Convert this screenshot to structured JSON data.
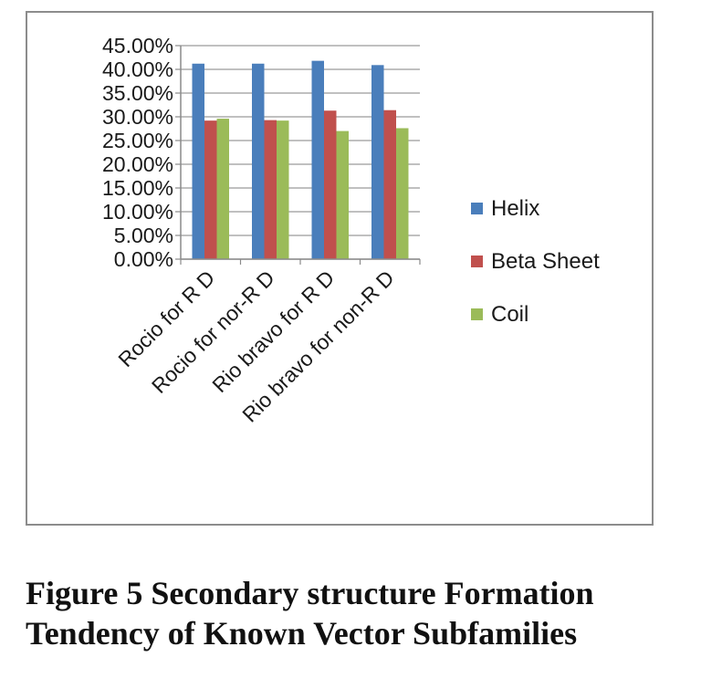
{
  "caption": {
    "line1": "Figure 5 Secondary structure Formation",
    "line2": "Tendency of Known Vector Subfamilies"
  },
  "chart_data": {
    "type": "bar",
    "categories": [
      "Rocio for R D",
      "Rocio for nor-R D",
      "Rio bravo for R D",
      "Rio bravo for non-R D"
    ],
    "series": [
      {
        "name": "Helix",
        "color": "#4a7ebb",
        "values": [
          41.2,
          41.2,
          41.8,
          40.9
        ]
      },
      {
        "name": "Beta Sheet",
        "color": "#c0504d",
        "values": [
          29.2,
          29.3,
          31.3,
          31.4
        ]
      },
      {
        "name": "Coil",
        "color": "#9bbb59",
        "values": [
          29.6,
          29.2,
          27.0,
          27.6
        ]
      }
    ],
    "yticks": [
      "0.00%",
      "5.00%",
      "10.00%",
      "15.00%",
      "20.00%",
      "25.00%",
      "30.00%",
      "35.00%",
      "40.00%",
      "45.00%"
    ],
    "ylim": [
      0,
      45
    ],
    "grid": true,
    "legend_position": "right"
  }
}
